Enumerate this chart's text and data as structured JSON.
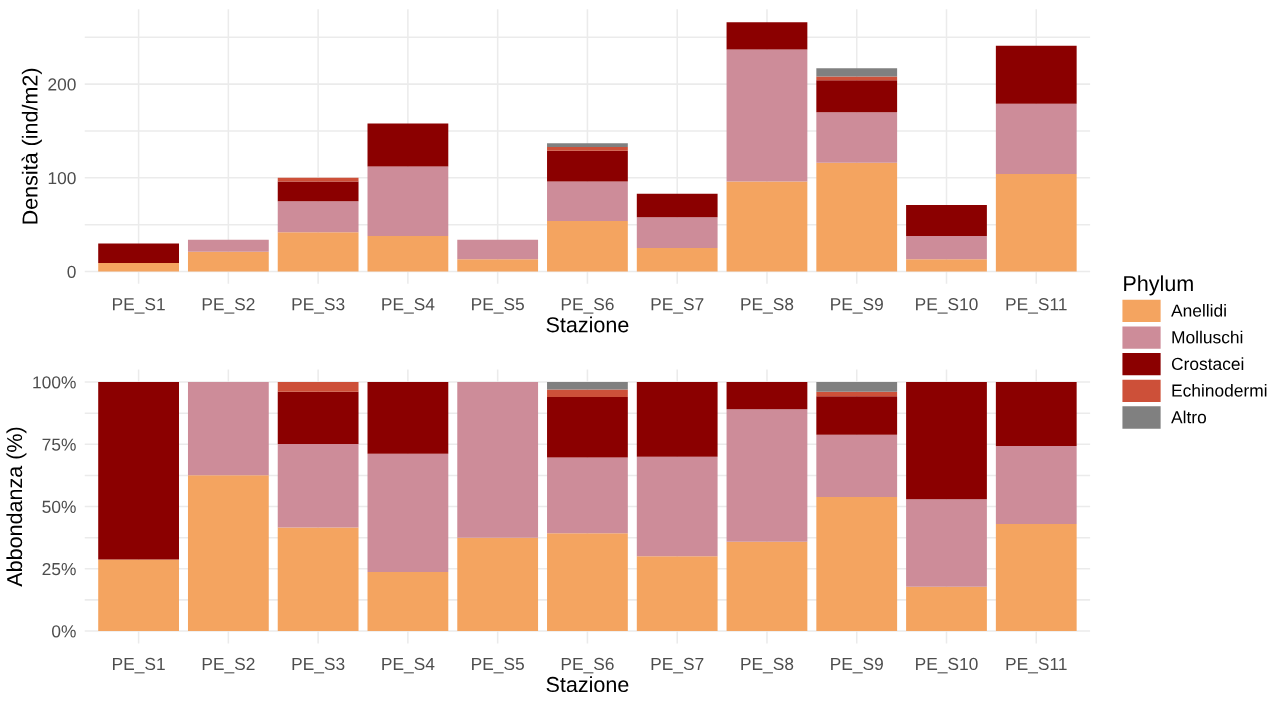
{
  "chart_data": [
    {
      "type": "bar",
      "stacked": true,
      "xlabel": "Stazione",
      "ylabel": "Densità (ind/m2)",
      "legend_title": "Phylum",
      "legend": "right",
      "grid": true,
      "categories": [
        "PE_S1",
        "PE_S2",
        "PE_S3",
        "PE_S4",
        "PE_S5",
        "PE_S6",
        "PE_S7",
        "PE_S8",
        "PE_S9",
        "PE_S10",
        "PE_S11"
      ],
      "ylim": [
        -13,
        280
      ],
      "yticks": [
        0,
        {
          "value": 50,
          "label": null
        },
        100,
        {
          "value": 150,
          "label": null
        },
        200,
        {
          "value": 250,
          "label": null
        }
      ],
      "series": [
        {
          "name": "Anellidi",
          "color": "#f4a460",
          "values": [
            9,
            21,
            42,
            38,
            13,
            54,
            25,
            96,
            116,
            13,
            104
          ]
        },
        {
          "name": "Molluschi",
          "color": "#cd8c99",
          "values": [
            null,
            13,
            33,
            74,
            21,
            42,
            33,
            141,
            54,
            25,
            75
          ]
        },
        {
          "name": "Crostacei",
          "color": "#8b0000",
          "values": [
            21,
            null,
            21,
            46,
            null,
            33,
            25,
            29,
            34,
            33,
            62
          ]
        },
        {
          "name": "Echinodermi",
          "color": "#cd5039",
          "values": [
            null,
            null,
            4,
            null,
            null,
            4,
            null,
            null,
            4,
            null,
            null
          ]
        },
        {
          "name": "Altro",
          "color": "#808080",
          "values": [
            null,
            null,
            null,
            null,
            null,
            4,
            null,
            null,
            9,
            null,
            null
          ]
        }
      ]
    },
    {
      "type": "bar",
      "stacked": true,
      "xlabel": "Stazione",
      "ylabel": "Abbondanza (%)",
      "grid": true,
      "categories": [
        "PE_S1",
        "PE_S2",
        "PE_S3",
        "PE_S4",
        "PE_S5",
        "PE_S6",
        "PE_S7",
        "PE_S8",
        "PE_S9",
        "PE_S10",
        "PE_S11"
      ],
      "ylim": [
        -5,
        105
      ],
      "yticks": [
        {
          "value": 0,
          "label": "0%"
        },
        {
          "value": 12.5,
          "label": null
        },
        {
          "value": 25,
          "label": "25%"
        },
        {
          "value": 37.5,
          "label": null
        },
        {
          "value": 50,
          "label": "50%"
        },
        {
          "value": 62.5,
          "label": null
        },
        {
          "value": 75,
          "label": "75%"
        },
        {
          "value": 87.5,
          "label": null
        },
        {
          "value": 100,
          "label": "100%"
        }
      ],
      "series": [
        {
          "color": "#f4a460",
          "values": [
            28.7,
            62.6,
            41.6,
            23.7,
            37.5,
            39.3,
            30,
            35.9,
            53.8,
            17.8,
            43
          ]
        },
        {
          "color": "#cd8c99",
          "values": [
            null,
            37.4,
            33.5,
            47.5,
            62.5,
            30.4,
            40,
            53.2,
            25,
            35.1,
            31.3
          ]
        },
        {
          "color": "#8b0000",
          "values": [
            71.3,
            null,
            21,
            28.8,
            null,
            24.3,
            30,
            10.9,
            15.5,
            47.1,
            25.7
          ]
        },
        {
          "color": "#cd5039",
          "values": [
            null,
            null,
            3.9,
            null,
            null,
            3,
            null,
            null,
            1.8,
            null,
            null
          ]
        },
        {
          "color": "#808080",
          "values": [
            null,
            null,
            null,
            null,
            null,
            3,
            null,
            null,
            3.9,
            null,
            null
          ]
        }
      ]
    }
  ]
}
